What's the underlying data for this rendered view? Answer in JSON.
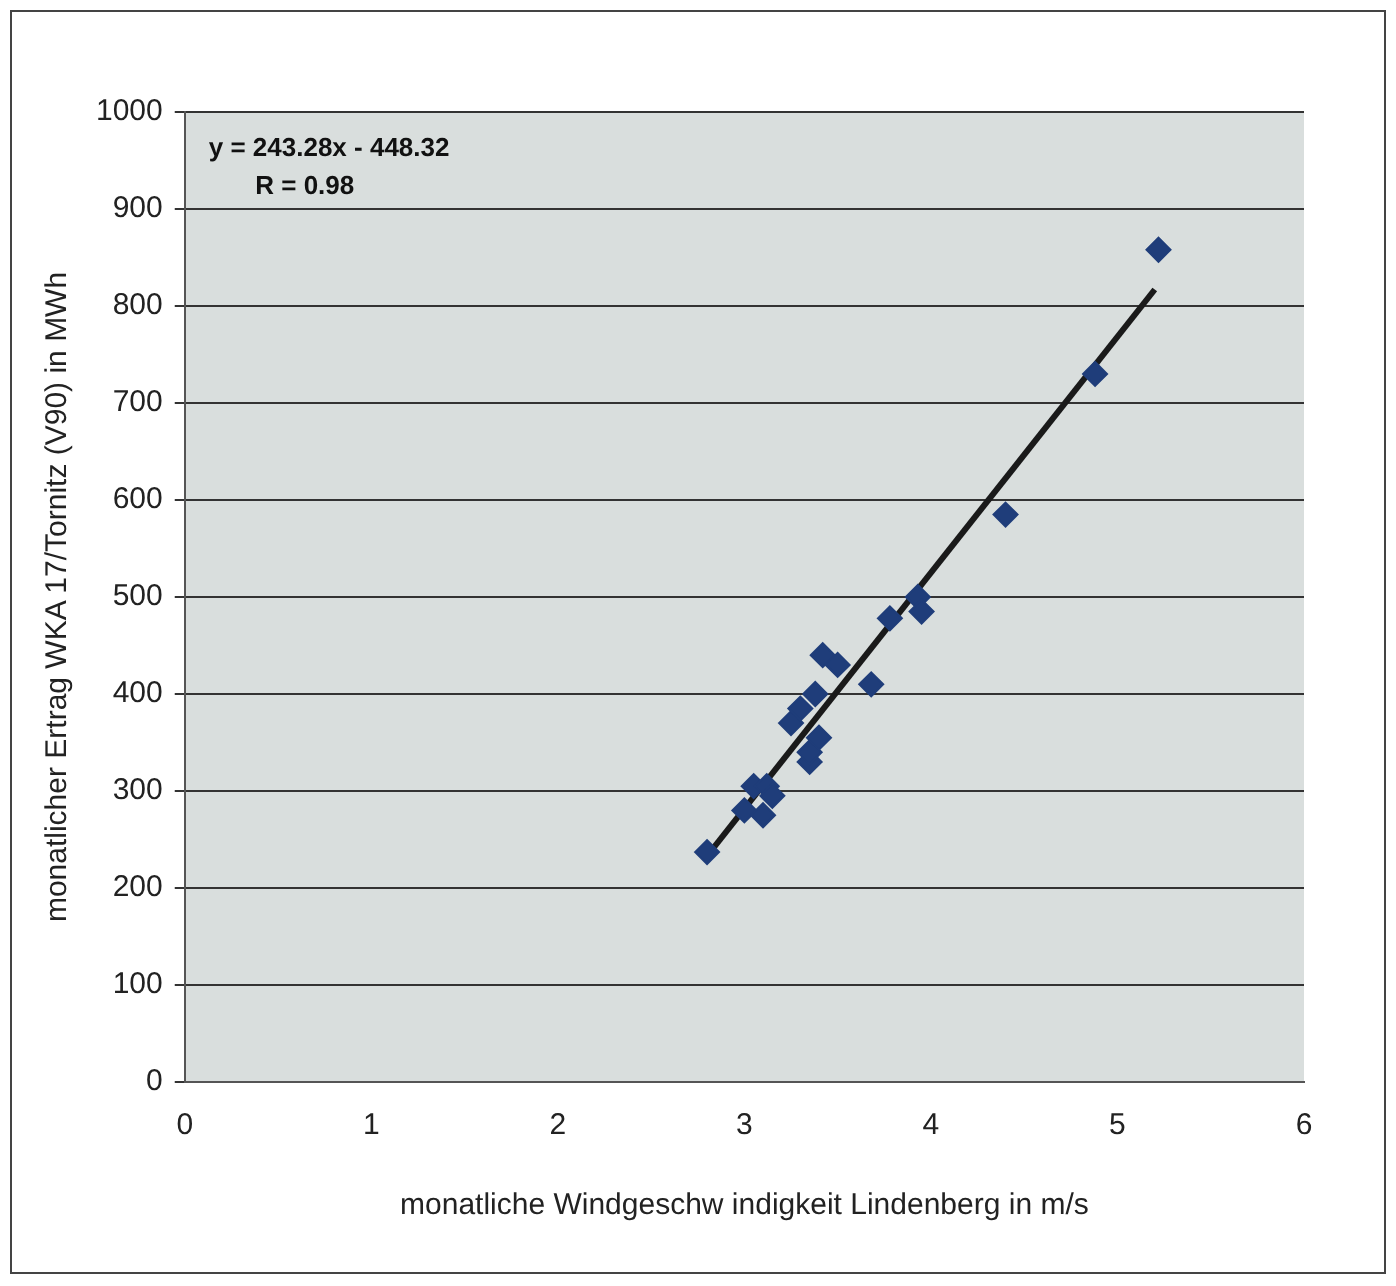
{
  "chart_data": {
    "type": "scatter",
    "xlabel": "monatliche Windgeschw indigkeit Lindenberg in m/s",
    "ylabel": "monatlicher Ertrag WKA 17/Tornitz (V90) in MWh",
    "xlim": [
      0,
      6
    ],
    "xticks": [
      0,
      1,
      2,
      3,
      4,
      5,
      6
    ],
    "ylim": [
      0,
      1000
    ],
    "yticks": [
      0,
      100,
      200,
      300,
      400,
      500,
      600,
      700,
      800,
      900,
      1000
    ],
    "grid": "y",
    "legend": false,
    "marker": "diamond",
    "annotations": [
      "y = 243.28x - 448.32",
      "R = 0.98"
    ],
    "series": [
      {
        "color": "#1f3d7a",
        "x": [
          2.8,
          3.0,
          3.05,
          3.1,
          3.12,
          3.15,
          3.25,
          3.3,
          3.35,
          3.35,
          3.38,
          3.4,
          3.42,
          3.5,
          3.68,
          3.78,
          3.93,
          3.95,
          4.4,
          4.88,
          5.22
        ],
        "values": [
          237,
          280,
          305,
          275,
          305,
          295,
          370,
          385,
          330,
          340,
          400,
          355,
          440,
          430,
          410,
          478,
          500,
          485,
          585,
          730,
          858
        ]
      },
      {
        "type": "line",
        "color": "#1a1a1a",
        "marker": "none",
        "x": [
          2.8,
          5.2
        ],
        "values": [
          233,
          817
        ]
      }
    ]
  }
}
